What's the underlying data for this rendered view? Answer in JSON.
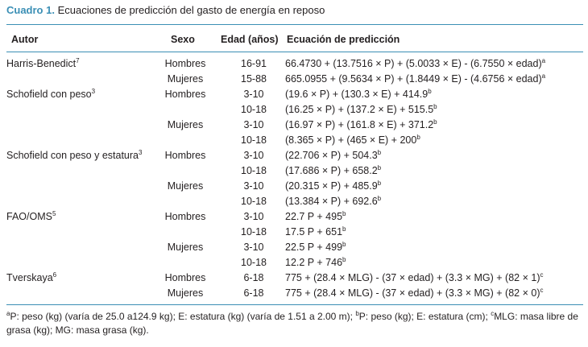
{
  "caption": {
    "label": "Cuadro 1.",
    "title": "Ecuaciones de predicción del gasto de energía en reposo"
  },
  "headers": {
    "autor": "Autor",
    "sexo": "Sexo",
    "edad": "Edad (años)",
    "ecuacion": "Ecuación de predicción"
  },
  "rows": [
    {
      "autor": "Harris-Benedict",
      "autor_sup": "7",
      "sexo": "Hombres",
      "edad": "16-91",
      "ecuacion": "66.4730 + (13.7516 × P) + (5.0033 × E) - (6.7550 × edad)",
      "eq_sup": "a"
    },
    {
      "autor": "",
      "autor_sup": "",
      "sexo": "Mujeres",
      "edad": "15-88",
      "ecuacion": "665.0955 + (9.5634 × P) + (1.8449 × E) - (4.6756 × edad)",
      "eq_sup": "a"
    },
    {
      "autor": "Schofield con peso",
      "autor_sup": "3",
      "sexo": "Hombres",
      "edad": "3-10",
      "ecuacion": "(19.6 × P) + (130.3 × E) + 414.9",
      "eq_sup": "b"
    },
    {
      "autor": "",
      "autor_sup": "",
      "sexo": "",
      "edad": "10-18",
      "ecuacion": "(16.25 × P) + (137.2 × E) + 515.5",
      "eq_sup": "b"
    },
    {
      "autor": "",
      "autor_sup": "",
      "sexo": "Mujeres",
      "edad": "3-10",
      "ecuacion": "(16.97 × P) + (161.8 × E) + 371.2",
      "eq_sup": "b"
    },
    {
      "autor": "",
      "autor_sup": "",
      "sexo": "",
      "edad": "10-18",
      "ecuacion": "(8.365 × P) + (465 × E) + 200",
      "eq_sup": "b"
    },
    {
      "autor": "Schofield con peso y estatura",
      "autor_sup": "3",
      "sexo": "Hombres",
      "edad": "3-10",
      "ecuacion": "(22.706 × P) + 504.3",
      "eq_sup": "b"
    },
    {
      "autor": "",
      "autor_sup": "",
      "sexo": "",
      "edad": "10-18",
      "ecuacion": "(17.686 × P) + 658.2",
      "eq_sup": "b"
    },
    {
      "autor": "",
      "autor_sup": "",
      "sexo": "Mujeres",
      "edad": "3-10",
      "ecuacion": "(20.315 × P) + 485.9",
      "eq_sup": "b"
    },
    {
      "autor": "",
      "autor_sup": "",
      "sexo": "",
      "edad": "10-18",
      "ecuacion": "(13.384 × P) + 692.6",
      "eq_sup": "b"
    },
    {
      "autor": "FAO/OMS",
      "autor_sup": "5",
      "sexo": "Hombres",
      "edad": "3-10",
      "ecuacion": "22.7 P + 495",
      "eq_sup": "b"
    },
    {
      "autor": "",
      "autor_sup": "",
      "sexo": "",
      "edad": "10-18",
      "ecuacion": "17.5 P + 651",
      "eq_sup": "b"
    },
    {
      "autor": "",
      "autor_sup": "",
      "sexo": "Mujeres",
      "edad": "3-10",
      "ecuacion": "22.5 P + 499",
      "eq_sup": "b"
    },
    {
      "autor": "",
      "autor_sup": "",
      "sexo": "",
      "edad": "10-18",
      "ecuacion": "12.2 P + 746",
      "eq_sup": "b"
    },
    {
      "autor": "Tverskaya",
      "autor_sup": "6",
      "sexo": "Hombres",
      "edad": "6-18",
      "ecuacion": "775 + (28.4 × MLG) - (37 × edad) + (3.3 × MG) + (82 × 1)",
      "eq_sup": "c"
    },
    {
      "autor": "",
      "autor_sup": "",
      "sexo": "Mujeres",
      "edad": "6-18",
      "ecuacion": "775 + (28.4 × MLG) - (37 × edad) + (3.3 × MG) + (82 × 0)",
      "eq_sup": "c"
    }
  ],
  "footnote": {
    "a_mark": "a",
    "a_text": "P: peso (kg) (varía de 25.0 a124.9 kg); E: estatura (kg) (varía de 1.51 a 2.00 m); ",
    "b_mark": "b",
    "b_text": "P: peso (kg); E: estatura (cm); ",
    "c_mark": "c",
    "c_text": "MLG: masa libre de grasa (kg); MG: masa grasa (kg)."
  },
  "colors": {
    "accent": "#3b8fb5",
    "text": "#231f20"
  }
}
